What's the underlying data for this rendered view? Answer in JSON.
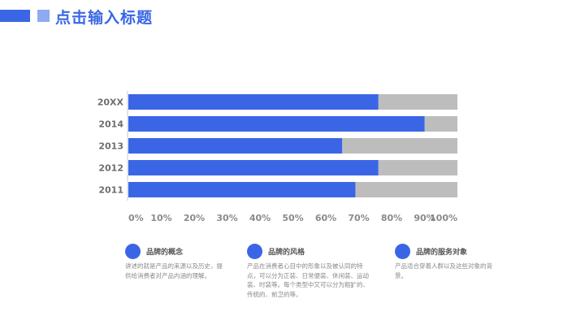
{
  "header": {
    "title": "点击输入标题"
  },
  "colors": {
    "accent": "#3a66e6",
    "accent_light": "#8fa9f2",
    "remainder": "#bdbdbd",
    "axis": "#c8c8c8"
  },
  "chart_data": {
    "type": "bar",
    "orientation": "horizontal",
    "stacked_to_100": true,
    "categories": [
      "20XX",
      "2014",
      "2013",
      "2012",
      "2011"
    ],
    "series": [
      {
        "name": "filled",
        "color": "#3a66e6",
        "values": [
          76,
          90,
          65,
          76,
          69
        ]
      },
      {
        "name": "remainder",
        "color": "#bdbdbd",
        "values": [
          24,
          10,
          35,
          24,
          31
        ]
      }
    ],
    "xlim": [
      0,
      100
    ],
    "x_tick_labels": [
      "0%",
      "10%",
      "20%",
      "30%",
      "40%",
      "50%",
      "60%",
      "70%",
      "80%",
      "90%",
      "100%"
    ],
    "title": "",
    "xlabel": "",
    "ylabel": "",
    "legend": "none",
    "grid": false
  },
  "cards": [
    {
      "title": "品牌的概念",
      "body": "讲述的就是产品的来源以及历史，提供给消费者对产品内涵的理解。"
    },
    {
      "title": "品牌的风格",
      "body": "产品在消费者心目中的形象以及被认同的特点，可以分为正装、日常便装、休闲装、运动装、时装等。每个类型中又可以分为粗犷的、传统的、前卫的等。"
    },
    {
      "title": "品牌的服务对象",
      "body": "产品适合穿着人群以及这些对象的背景。"
    }
  ]
}
